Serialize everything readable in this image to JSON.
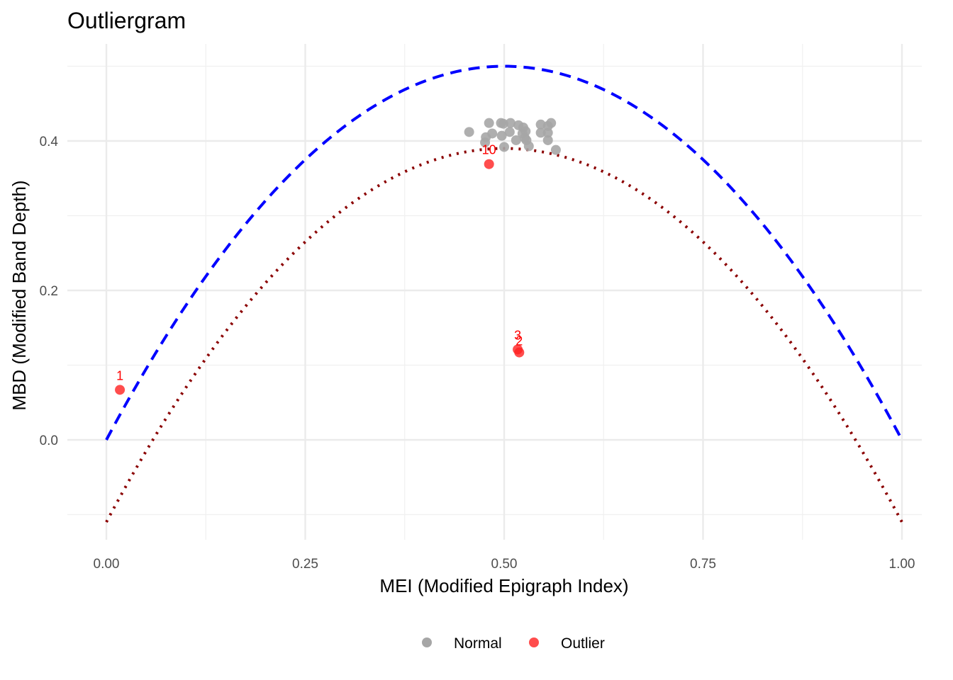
{
  "chart_data": {
    "type": "scatter",
    "title": "Outliergram",
    "xlabel": "MEI (Modified Epigraph Index)",
    "ylabel": "MBD (Modified Band Depth)",
    "xlim": [
      -0.05,
      1.05
    ],
    "ylim": [
      -0.125,
      0.52
    ],
    "x_ticks": [
      0.0,
      0.25,
      0.5,
      0.75,
      1.0
    ],
    "x_tick_labels": [
      "0.00",
      "0.25",
      "0.50",
      "0.75",
      "1.00"
    ],
    "y_ticks": [
      0.0,
      0.2,
      0.4
    ],
    "y_tick_labels": [
      "0.0",
      "0.2",
      "0.4"
    ],
    "grid": true,
    "legend_position": "bottom",
    "colors": {
      "normal": "#a6a6a6",
      "outlier": "#ff2020",
      "label": "#ff0000",
      "parabola": "#0000ff",
      "threshold": "#8b0000"
    },
    "series": [
      {
        "name": "Normal",
        "points": [
          {
            "x": 0.456,
            "y": 0.412
          },
          {
            "x": 0.481,
            "y": 0.424
          },
          {
            "x": 0.477,
            "y": 0.405
          },
          {
            "x": 0.485,
            "y": 0.41
          },
          {
            "x": 0.476,
            "y": 0.398
          },
          {
            "x": 0.496,
            "y": 0.424
          },
          {
            "x": 0.499,
            "y": 0.423
          },
          {
            "x": 0.497,
            "y": 0.407
          },
          {
            "x": 0.508,
            "y": 0.424
          },
          {
            "x": 0.5,
            "y": 0.392
          },
          {
            "x": 0.507,
            "y": 0.412
          },
          {
            "x": 0.515,
            "y": 0.401
          },
          {
            "x": 0.518,
            "y": 0.421
          },
          {
            "x": 0.524,
            "y": 0.418
          },
          {
            "x": 0.523,
            "y": 0.41
          },
          {
            "x": 0.527,
            "y": 0.413
          },
          {
            "x": 0.526,
            "y": 0.404
          },
          {
            "x": 0.528,
            "y": 0.401
          },
          {
            "x": 0.531,
            "y": 0.393
          },
          {
            "x": 0.546,
            "y": 0.422
          },
          {
            "x": 0.546,
            "y": 0.411
          },
          {
            "x": 0.555,
            "y": 0.42
          },
          {
            "x": 0.555,
            "y": 0.411
          },
          {
            "x": 0.555,
            "y": 0.401
          },
          {
            "x": 0.559,
            "y": 0.424
          },
          {
            "x": 0.565,
            "y": 0.388
          }
        ]
      },
      {
        "name": "Outlier",
        "points": [
          {
            "x": 0.017,
            "y": 0.067,
            "label": "1"
          },
          {
            "x": 0.481,
            "y": 0.369,
            "label": "10"
          },
          {
            "x": 0.517,
            "y": 0.121,
            "label": "3"
          },
          {
            "x": 0.519,
            "y": 0.117,
            "label": "2"
          }
        ]
      }
    ],
    "curves": [
      {
        "style": "dashed",
        "color": "blue",
        "formula": "a0 + a1*MEI + a2*n^2*MEI^2",
        "peak": 0.5,
        "endpoints": [
          0.0,
          0.0
        ]
      },
      {
        "style": "dotted",
        "color": "darkred",
        "peak": 0.39,
        "endpoints": [
          -0.11,
          -0.11
        ]
      }
    ]
  },
  "legend": {
    "items": [
      {
        "label": "Normal",
        "color": "#a6a6a6"
      },
      {
        "label": "Outlier",
        "color": "#ff2020"
      }
    ]
  }
}
